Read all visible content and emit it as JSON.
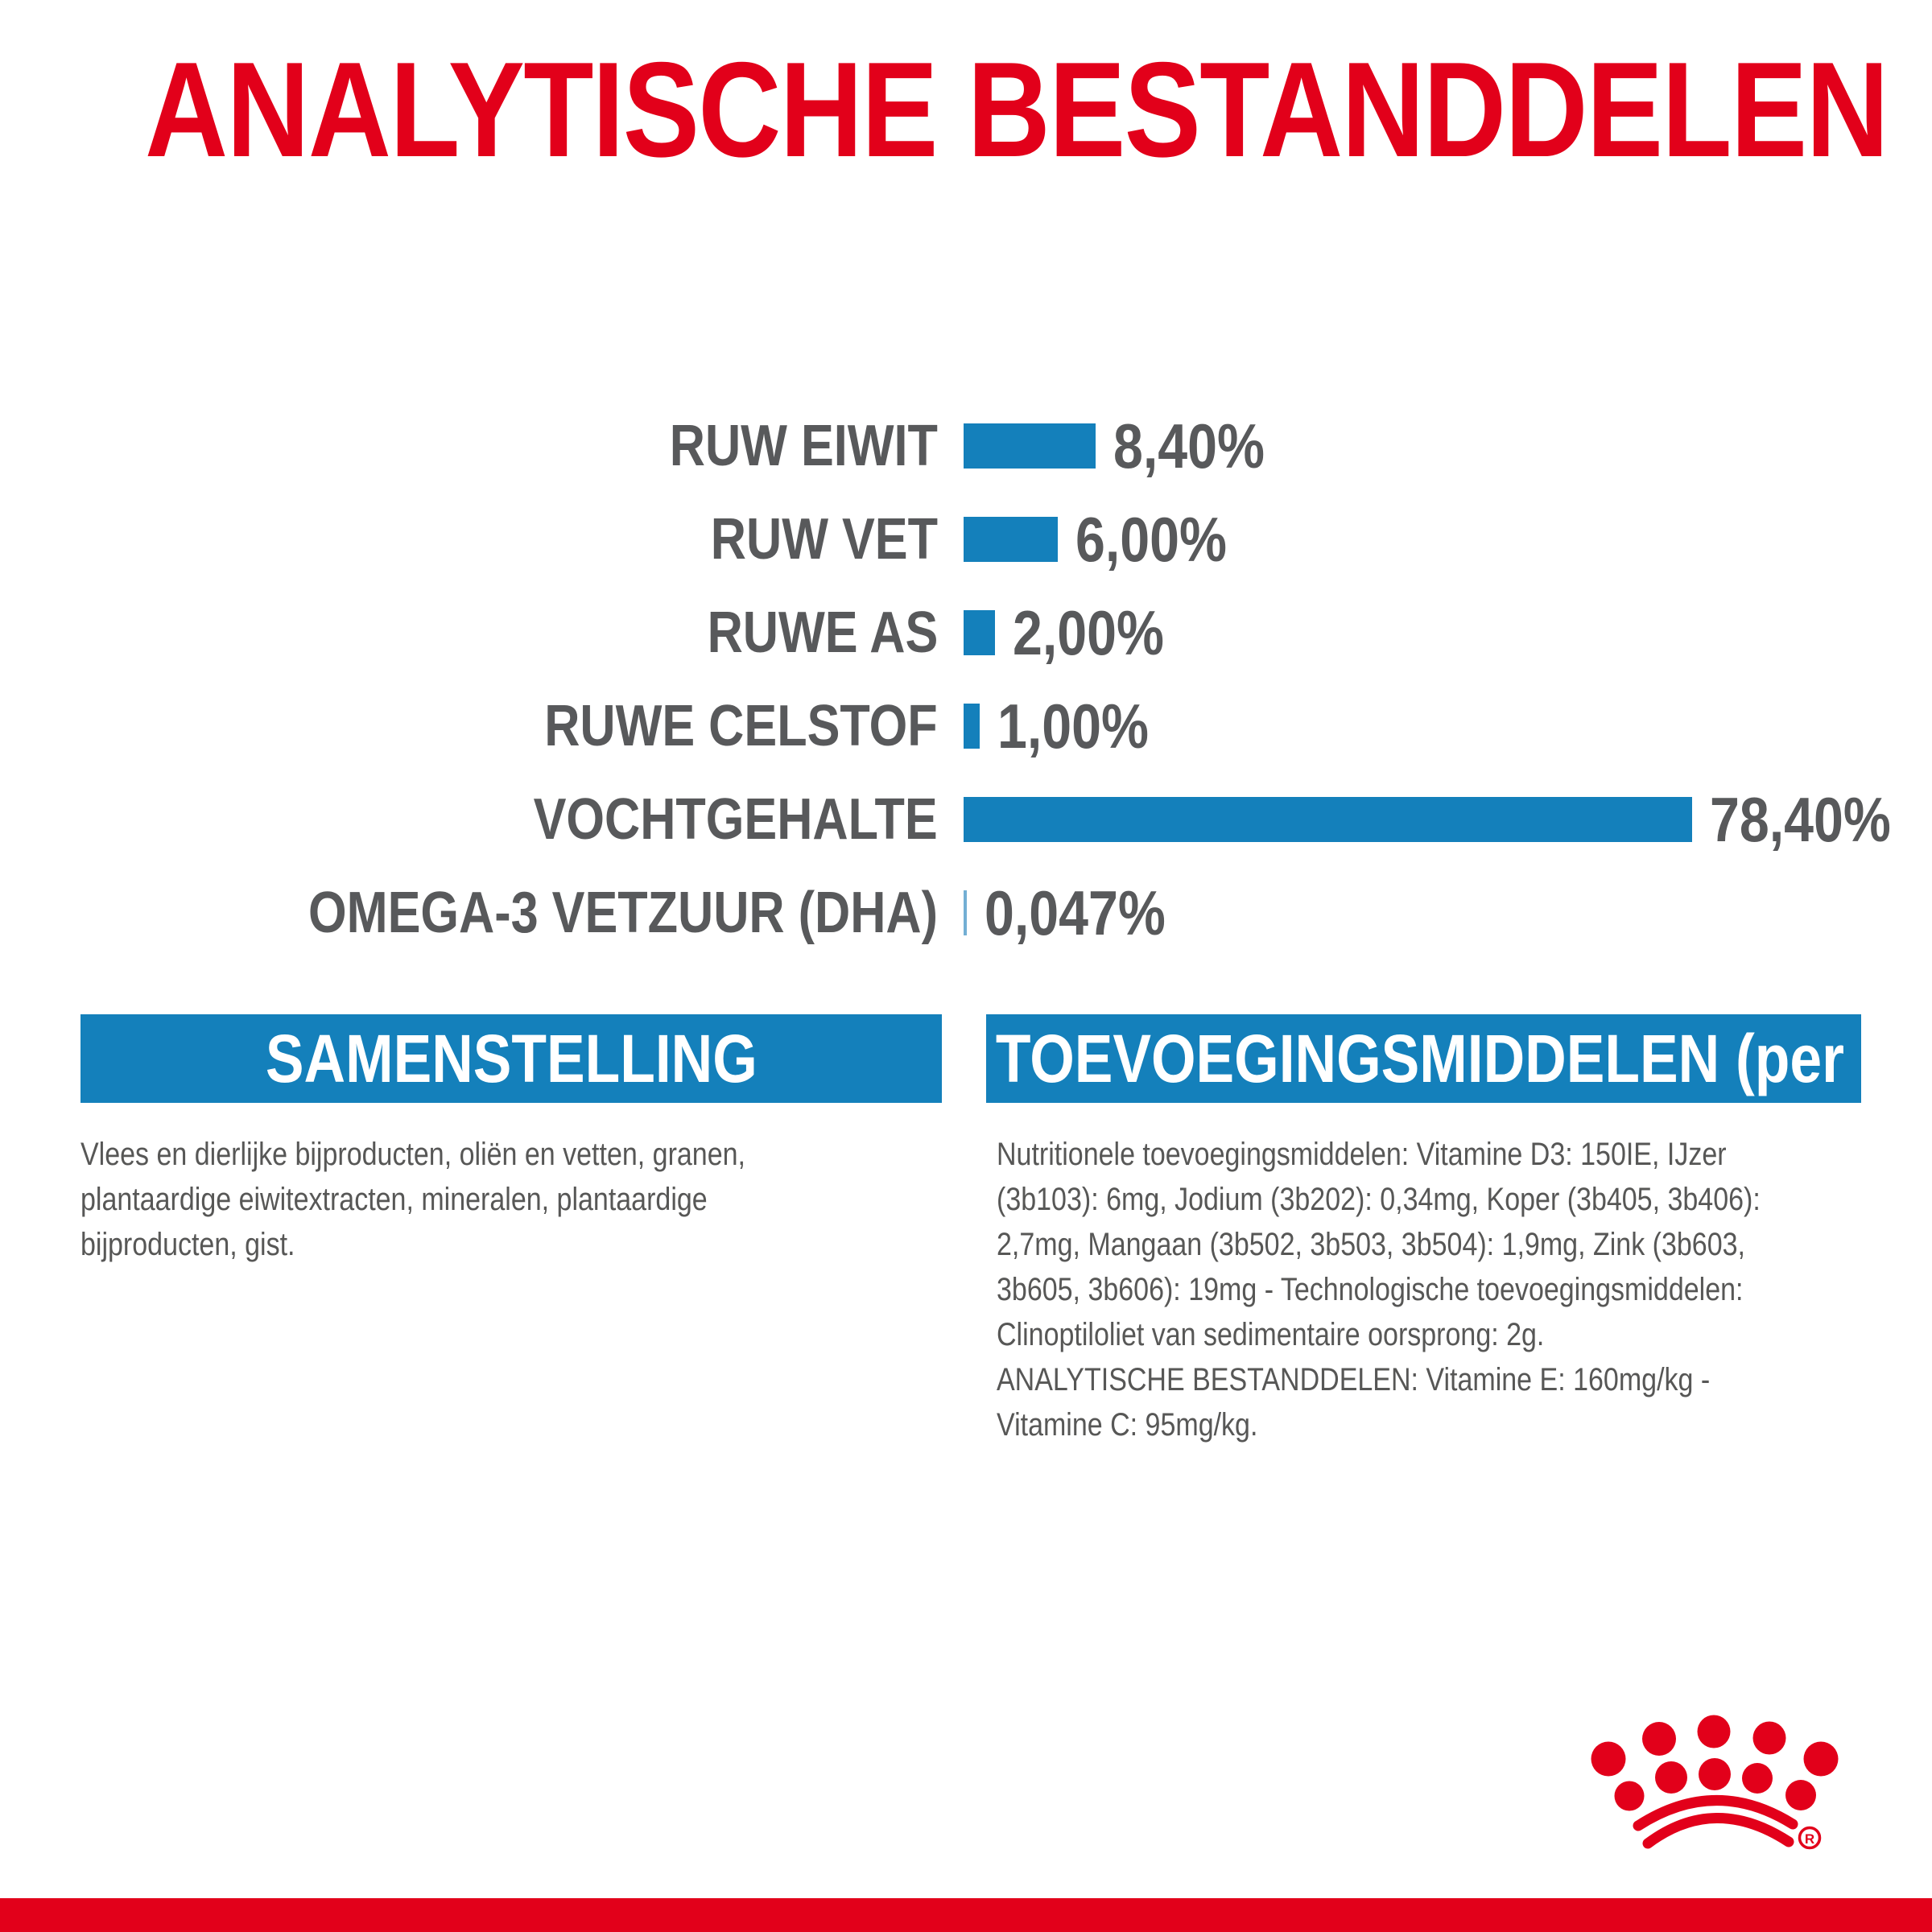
{
  "title": "ANALYTISCHE BESTANDDELEN",
  "colors": {
    "red": "#E2001A",
    "blue": "#1480BB",
    "light_blue": "#73AFD4",
    "label_gray": "#58595B",
    "body_gray": "#575756",
    "header_text": "#FFFFFF"
  },
  "chart_data": {
    "type": "bar",
    "orientation": "horizontal",
    "unit": "%",
    "categories": [
      "RUW EIWIT",
      "RUW VET",
      "RUWE AS",
      "RUWE CELSTOF",
      "VOCHTGEHALTE",
      "OMEGA-3 VETZUUR (DHA)"
    ],
    "values": [
      8.4,
      6.0,
      2.0,
      1.0,
      78.4,
      0.047
    ],
    "value_labels": [
      "8,40%",
      "6,00%",
      "2,00%",
      "1,00%",
      "78,40%",
      "0,047%"
    ],
    "title": "ANALYTISCHE BESTANDDELEN",
    "legend": "none",
    "grid": "off",
    "note": "bar lengths proportional to value, longest bar clamped to fit width"
  },
  "sections": {
    "left": {
      "header": "SAMENSTELLING",
      "body": "Vlees en dierlijke bijproducten, oliën en vetten, granen,\nplantaardige eiwitextracten, mineralen, plantaardige\nbijproducten, gist."
    },
    "right": {
      "header": "TOEVOEGINGSMIDDELEN (per kg)",
      "body": "Nutritionele toevoegingsmiddelen: Vitamine D3: 150IE, IJzer\n(3b103): 6mg, Jodium (3b202): 0,34mg, Koper (3b405, 3b406):\n2,7mg, Mangaan (3b502, 3b503, 3b504): 1,9mg, Zink (3b603,\n3b605, 3b606): 19mg - Technologische toevoegingsmiddelen:\nClinoptiloliet van sedimentaire oorsprong: 2g.\nANALYTISCHE BESTANDDELEN: Vitamine E: 160mg/kg -\nVitamine C: 95mg/kg."
    }
  },
  "logo": {
    "name": "royal-canin-crown",
    "registered_mark": "R"
  }
}
